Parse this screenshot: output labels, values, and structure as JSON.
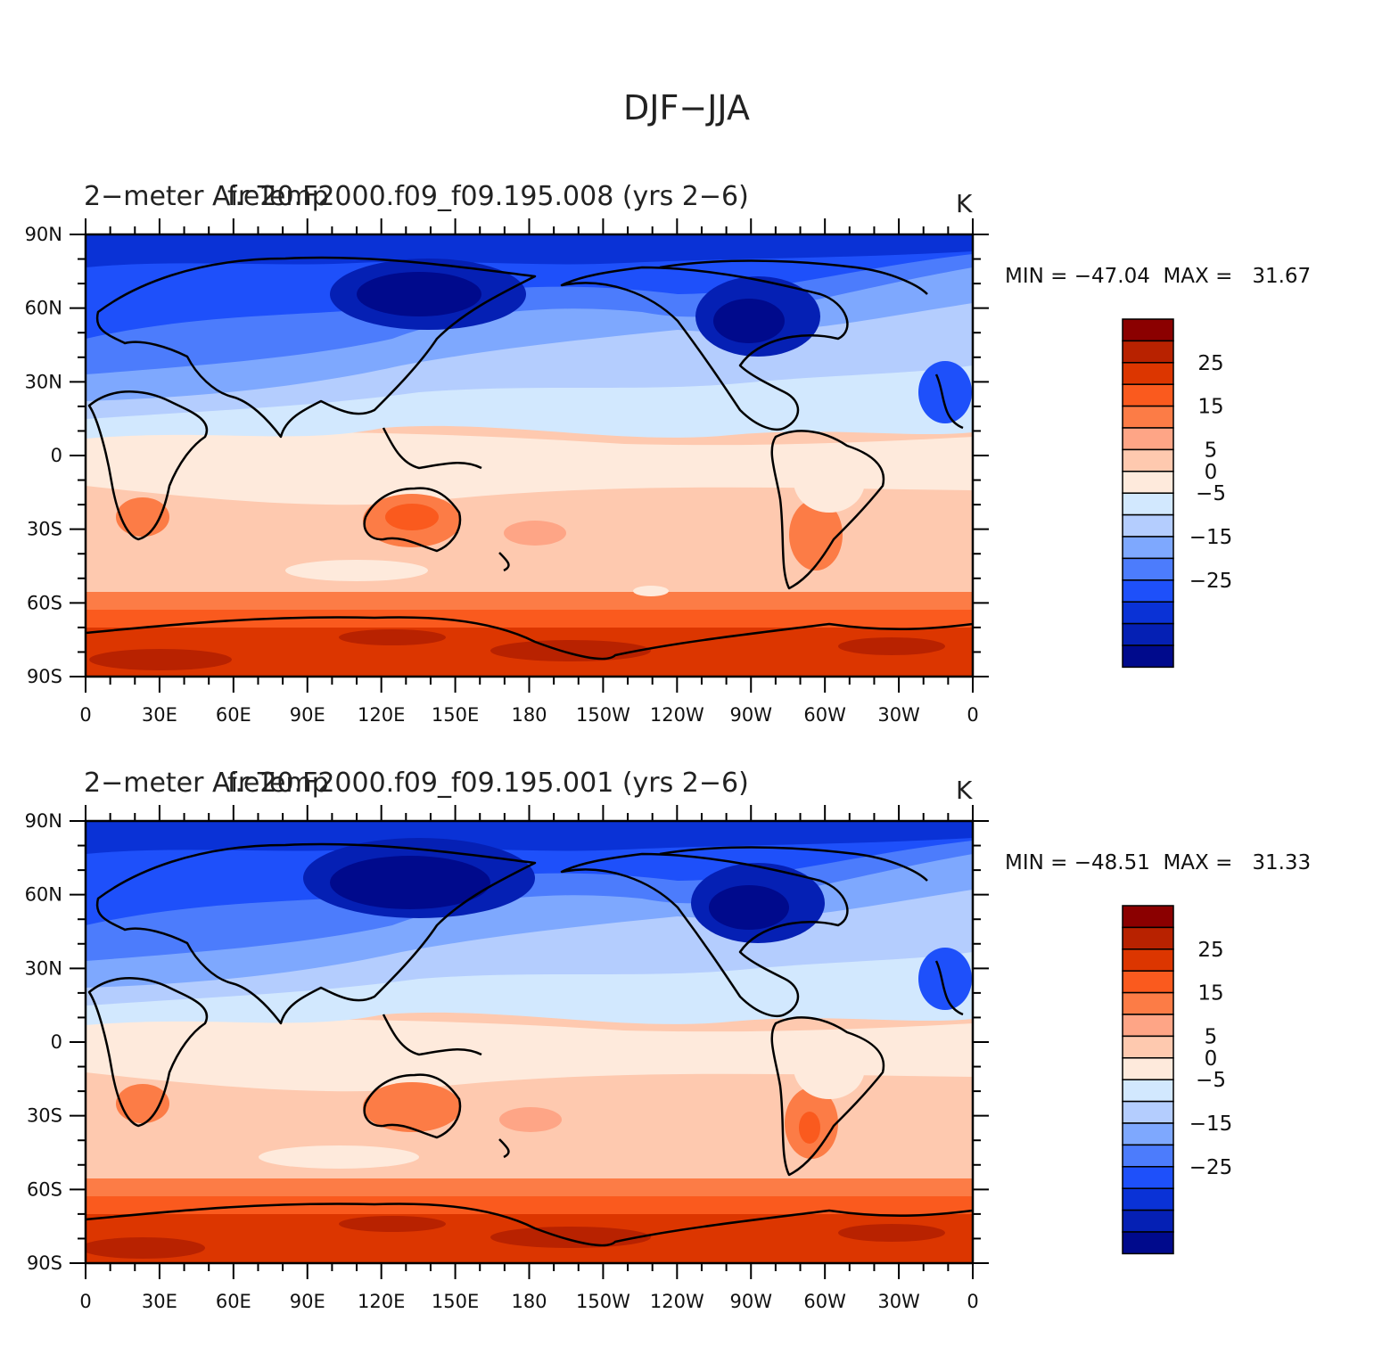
{
  "figure_title": "DJF−JJA",
  "colorbar": {
    "colors": [
      "#8b0000",
      "#b82200",
      "#dc3600",
      "#fa5a1e",
      "#fc7c46",
      "#fea586",
      "#fec9af",
      "#feeadc",
      "#d2e8fe",
      "#b4cdfe",
      "#7ea8fe",
      "#4c7cfc",
      "#1e50fa",
      "#0a32d6",
      "#0520b4",
      "#000a8c"
    ],
    "labels": [
      {
        "text": "25",
        "level": 25
      },
      {
        "text": "15",
        "level": 15
      },
      {
        "text": "5",
        "level": 5
      },
      {
        "text": "0",
        "level": 0
      },
      {
        "text": "−5",
        "level": -5
      },
      {
        "text": "−15",
        "level": -15
      },
      {
        "text": "−25",
        "level": -25
      }
    ]
  },
  "axes": {
    "lat_labels": [
      "90N",
      "60N",
      "30N",
      "0",
      "30S",
      "60S",
      "90S"
    ],
    "lon_labels": [
      "0",
      "30E",
      "60E",
      "90E",
      "120E",
      "150E",
      "180",
      "150W",
      "120W",
      "90W",
      "60W",
      "30W",
      "0"
    ]
  },
  "panels": [
    {
      "left_title": "2−meter Air Temp",
      "center_title": "f.e20.F2000.f09_f09.195.008 (yrs 2−6)",
      "units": "K",
      "stats": "MIN = −47.04  MAX =   31.67",
      "min": -47.04,
      "max": 31.67
    },
    {
      "left_title": "2−meter Air Temp",
      "center_title": "f.e20.F2000.f09_f09.195.001 (yrs 2−6)",
      "units": "K",
      "stats": "MIN = −48.51  MAX =   31.33",
      "min": -48.51,
      "max": 31.33
    }
  ],
  "map": {
    "projection": "cylindrical equidistant, centered 180",
    "lat_range": [
      -90,
      90
    ],
    "lon_range": [
      0,
      360
    ],
    "land_outline": true
  }
}
